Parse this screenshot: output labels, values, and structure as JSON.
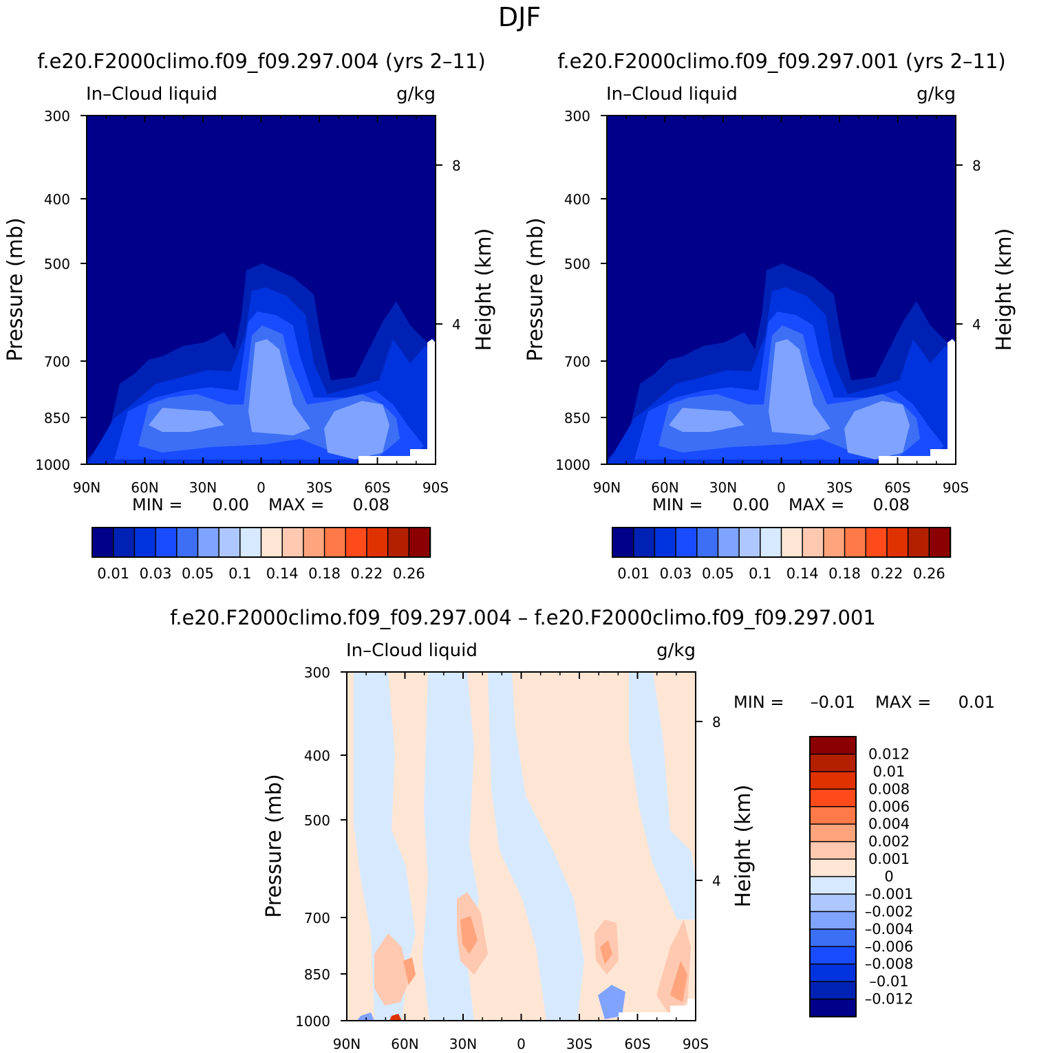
{
  "figure": {
    "title": "DJF",
    "diff_title": "f.e20.F2000climo.f09_f09.297.004 – f.e20.F2000climo.f09_f09.297.001"
  },
  "colors": {
    "main_levels": [
      "#00008b",
      "#0022b4",
      "#0033dd",
      "#1a4cff",
      "#3d6ff5",
      "#7fa3ff",
      "#aec8ff",
      "#d6e9ff",
      "#ffe6d4",
      "#ffc8b0",
      "#ffa47c",
      "#ff7a48",
      "#ff4a1c",
      "#e03200",
      "#b32000",
      "#8b0000"
    ],
    "diff_levels": [
      "#00008b",
      "#0022b4",
      "#0033dd",
      "#1a4cff",
      "#3d6ff5",
      "#7fa3ff",
      "#aec8ff",
      "#d6e9ff",
      "#ffe6d4",
      "#ffc8b0",
      "#ffa47c",
      "#ff7a48",
      "#ff4a1c",
      "#e03200",
      "#b32000",
      "#8b0000"
    ]
  },
  "chart_data": [
    {
      "type": "heatmap",
      "title": "f.e20.F2000climo.f09_f09.297.004 (yrs 2–11)",
      "left_label": "In–Cloud liquid",
      "right_label": "g/kg",
      "ylabel": "Pressure (mb)",
      "y2label": "Height (km)",
      "xticks": [
        "90N",
        "60N",
        "30N",
        "0",
        "30S",
        "60S",
        "90S"
      ],
      "yticks": [
        "300",
        "400",
        "500",
        "700",
        "850",
        "1000"
      ],
      "y2ticks": [
        "8",
        "4"
      ],
      "stats": {
        "min_label": "MIN =",
        "min": "0.00",
        "max_label": "MAX =",
        "max": "0.08"
      },
      "colorbar_labels": [
        "0.01",
        "0.03",
        "0.05",
        "0.1",
        "0.14",
        "0.18",
        "0.22",
        "0.26"
      ],
      "ylim": [
        1000,
        300
      ],
      "xlim": [
        90,
        -90
      ]
    },
    {
      "type": "heatmap",
      "title": "f.e20.F2000climo.f09_f09.297.001 (yrs 2–11)",
      "left_label": "In–Cloud liquid",
      "right_label": "g/kg",
      "ylabel": "Pressure (mb)",
      "y2label": "Height (km)",
      "xticks": [
        "90N",
        "60N",
        "30N",
        "0",
        "30S",
        "60S",
        "90S"
      ],
      "yticks": [
        "300",
        "400",
        "500",
        "700",
        "850",
        "1000"
      ],
      "y2ticks": [
        "8",
        "4"
      ],
      "stats": {
        "min_label": "MIN =",
        "min": "0.00",
        "max_label": "MAX =",
        "max": "0.08"
      },
      "colorbar_labels": [
        "0.01",
        "0.03",
        "0.05",
        "0.1",
        "0.14",
        "0.18",
        "0.22",
        "0.26"
      ],
      "ylim": [
        1000,
        300
      ],
      "xlim": [
        90,
        -90
      ]
    },
    {
      "type": "heatmap",
      "title": "",
      "left_label": "In–Cloud liquid",
      "right_label": "g/kg",
      "ylabel": "Pressure (mb)",
      "y2label": "Height (km)",
      "xticks": [
        "90N",
        "60N",
        "30N",
        "0",
        "30S",
        "60S",
        "90S"
      ],
      "yticks": [
        "300",
        "400",
        "500",
        "700",
        "850",
        "1000"
      ],
      "y2ticks": [
        "8",
        "4"
      ],
      "stats": {
        "min_label": "MIN =",
        "min": "–0.01",
        "max_label": "MAX =",
        "max": "0.01"
      },
      "colorbar_labels": [
        "0.012",
        "0.01",
        "0.008",
        "0.006",
        "0.004",
        "0.002",
        "0.001",
        "0",
        "–0.001",
        "–0.002",
        "–0.004",
        "–0.006",
        "–0.008",
        "–0.01",
        "–0.012"
      ],
      "ylim": [
        1000,
        300
      ],
      "xlim": [
        90,
        -90
      ]
    }
  ]
}
